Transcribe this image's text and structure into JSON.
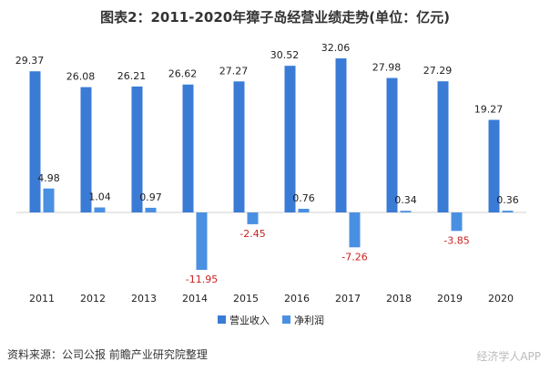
{
  "title": "图表2：2011-2020年獐子岛经营业绩走势(单位：亿元)",
  "source": "资料来源：公司公报 前瞻产业研究院整理",
  "footer_mark": "经济学人APP",
  "chart_data": {
    "type": "bar",
    "categories": [
      "2011",
      "2012",
      "2013",
      "2014",
      "2015",
      "2016",
      "2017",
      "2018",
      "2019",
      "2020"
    ],
    "series": [
      {
        "name": "营业收入",
        "color": "#3a7bd5",
        "values": [
          29.37,
          26.08,
          26.21,
          26.62,
          27.27,
          30.52,
          32.06,
          27.98,
          27.29,
          19.27
        ]
      },
      {
        "name": "净利润",
        "color": "#4a90e2",
        "values": [
          4.98,
          1.04,
          0.97,
          -11.95,
          -2.45,
          0.76,
          -7.26,
          0.34,
          -3.85,
          0.36
        ]
      }
    ],
    "legend_position": "bottom",
    "negative_label_color": "#cc2222",
    "ylim": [
      -12,
      33
    ],
    "grid": false
  }
}
